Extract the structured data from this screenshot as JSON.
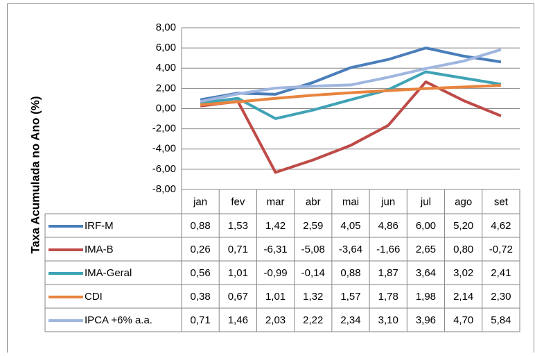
{
  "chart_data": {
    "type": "line",
    "y_label": "Taxa Acumulada no Ano (%)",
    "categories": [
      "jan",
      "fev",
      "mar",
      "abr",
      "mai",
      "jun",
      "jul",
      "ago",
      "set"
    ],
    "series": [
      {
        "name": "IRF-M",
        "color": "#4a7ebb",
        "values": [
          0.88,
          1.53,
          1.42,
          2.59,
          4.05,
          4.86,
          6.0,
          5.2,
          4.62
        ],
        "value_labels": [
          "0,88",
          "1,53",
          "1,42",
          "2,59",
          "4,05",
          "4,86",
          "6,00",
          "5,20",
          "4,62"
        ]
      },
      {
        "name": "IMA-B",
        "color": "#be4b48",
        "values": [
          0.26,
          0.71,
          -6.31,
          -5.08,
          -3.64,
          -1.66,
          2.65,
          0.8,
          -0.72
        ],
        "value_labels": [
          "0,26",
          "0,71",
          "-6,31",
          "-5,08",
          "-3,64",
          "-1,66",
          "2,65",
          "0,80",
          "-0,72"
        ]
      },
      {
        "name": "IMA-Geral",
        "color": "#3fa3b5",
        "values": [
          0.56,
          1.01,
          -0.99,
          -0.14,
          0.88,
          1.87,
          3.64,
          3.02,
          2.41
        ],
        "value_labels": [
          "0,56",
          "1,01",
          "-0,99",
          "-0,14",
          "0,88",
          "1,87",
          "3,64",
          "3,02",
          "2,41"
        ]
      },
      {
        "name": "CDI",
        "color": "#e8843e",
        "values": [
          0.38,
          0.67,
          1.01,
          1.32,
          1.57,
          1.78,
          1.98,
          2.14,
          2.3
        ],
        "value_labels": [
          "0,38",
          "0,67",
          "1,01",
          "1,32",
          "1,57",
          "1,78",
          "1,98",
          "2,14",
          "2,30"
        ]
      },
      {
        "name": "IPCA +6% a.a.",
        "color": "#9fb6df",
        "values": [
          0.71,
          1.46,
          2.03,
          2.22,
          2.34,
          3.1,
          3.96,
          4.7,
          5.84
        ],
        "value_labels": [
          "0,71",
          "1,46",
          "2,03",
          "2,22",
          "2,34",
          "3,10",
          "3,96",
          "4,70",
          "5,84"
        ]
      }
    ],
    "ylim": [
      -8,
      8
    ],
    "yticks": [
      {
        "value": -8,
        "label": "-8,00"
      },
      {
        "value": -6,
        "label": "-6,00"
      },
      {
        "value": -4,
        "label": "-4,00"
      },
      {
        "value": -2,
        "label": "-2,00"
      },
      {
        "value": 0,
        "label": "0,00"
      },
      {
        "value": 2,
        "label": "2,00"
      },
      {
        "value": 4,
        "label": "4,00"
      },
      {
        "value": 6,
        "label": "6,00"
      },
      {
        "value": 8,
        "label": "8,00"
      }
    ],
    "grid": true
  }
}
